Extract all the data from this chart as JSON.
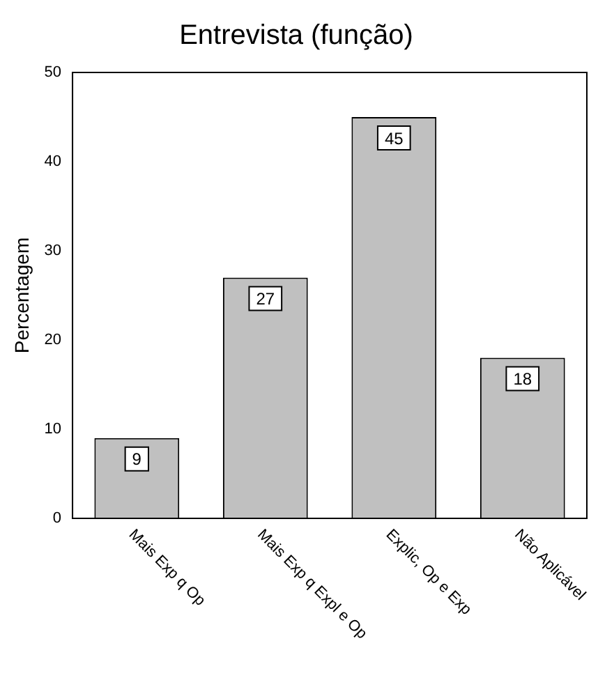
{
  "chart_data": {
    "type": "bar",
    "title": "Entrevista (função)",
    "ylabel": "Percentagem",
    "categories": [
      "Mais Exp q Op",
      "Mais Exp q Expl e Op",
      "Explic, Op e Exp",
      "Não Aplicável"
    ],
    "values": [
      9,
      27,
      45,
      18
    ],
    "color": "#c0c0c0",
    "ylim": [
      0,
      50
    ],
    "yticks": [
      0,
      10,
      20,
      30,
      40,
      50
    ],
    "grid": false,
    "legend": false,
    "data_labels": true
  }
}
